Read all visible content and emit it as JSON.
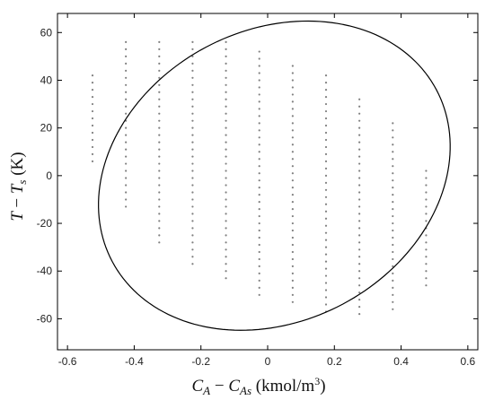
{
  "chart_data": {
    "type": "scatter",
    "title": "",
    "xlabel": "C_A − C_As (kmol/m³)",
    "ylabel": "T − T_s (K)",
    "xlim": [
      -0.63,
      0.63
    ],
    "ylim": [
      -73,
      68
    ],
    "x_ticks": [
      -0.6,
      -0.4,
      -0.2,
      0,
      0.2,
      0.4,
      0.6
    ],
    "x_tick_labels": [
      "-0.6",
      "-0.4",
      "-0.2",
      "0",
      "0.2",
      "0.4",
      "0.6"
    ],
    "y_ticks": [
      -60,
      -40,
      -20,
      0,
      20,
      40,
      60
    ],
    "y_tick_labels": [
      "-60",
      "-40",
      "-20",
      "0",
      "20",
      "40",
      "60"
    ],
    "grid": false,
    "legend": "none",
    "ellipse": {
      "center": [
        0.02,
        0
      ],
      "semi_axis_x": 0.55,
      "semi_axis_y": 61,
      "description": "stability region boundary"
    },
    "point_grid": {
      "x_columns": [
        -0.525,
        -0.425,
        -0.325,
        -0.225,
        -0.125,
        -0.025,
        0.075,
        0.175,
        0.275,
        0.375,
        0.475
      ],
      "column_y_ranges": [
        [
          4,
          42
        ],
        [
          -14,
          56
        ],
        [
          -28,
          56
        ],
        [
          -38,
          56
        ],
        [
          -44,
          56
        ],
        [
          -52,
          52
        ],
        [
          -54,
          46
        ],
        [
          -58,
          42
        ],
        [
          -58,
          32
        ],
        [
          -58,
          22
        ],
        [
          -48,
          2
        ]
      ],
      "y_step": 3,
      "marker_color": "#808080"
    },
    "colors": {
      "ellipse": "#000000",
      "axes": "#000000"
    }
  }
}
